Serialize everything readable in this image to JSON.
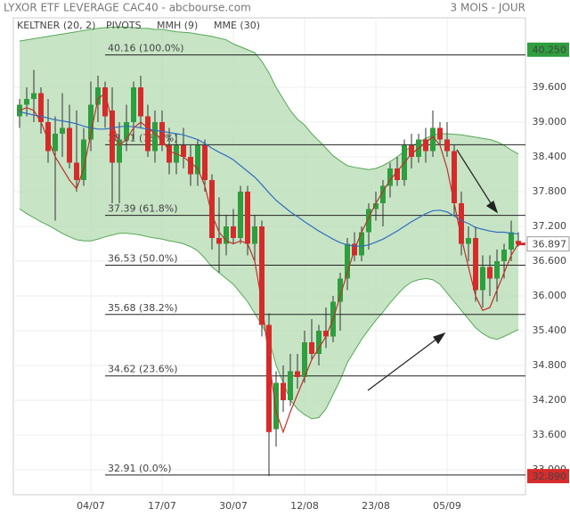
{
  "chart_data": {
    "type": "candlestick",
    "title": "LYXOR ETF LEVERAGE CAC40 - abcbourse.com",
    "period": "3 MOIS - JOUR",
    "categories": [
      null,
      null,
      null,
      null,
      null,
      null,
      null,
      null,
      null,
      null,
      "04/07",
      null,
      null,
      null,
      null,
      null,
      null,
      null,
      null,
      null,
      "17/07",
      null,
      null,
      null,
      null,
      null,
      null,
      null,
      null,
      null,
      "30/07",
      null,
      null,
      null,
      null,
      null,
      null,
      null,
      null,
      null,
      "12/08",
      null,
      null,
      null,
      null,
      null,
      null,
      null,
      null,
      null,
      "23/08",
      null,
      null,
      null,
      null,
      null,
      null,
      null,
      null,
      null,
      "05/09",
      null,
      null,
      null,
      null,
      null,
      null,
      null,
      null,
      null,
      null
    ],
    "open": [
      39.1,
      39.3,
      39.4,
      39.5,
      39.0,
      38.5,
      38.8,
      38.9,
      38.3,
      38.0,
      38.7,
      39.3,
      39.6,
      39.2,
      38.3,
      38.7,
      39.0,
      39.6,
      39.1,
      38.5,
      39.0,
      38.6,
      38.3,
      38.6,
      38.4,
      38.1,
      38.6,
      38.0,
      37.0,
      36.9,
      37.2,
      37.0,
      37.8,
      36.9,
      37.2,
      35.5,
      33.7,
      34.5,
      34.2,
      34.7,
      34.6,
      35.2,
      35.0,
      35.4,
      35.3,
      35.9,
      36.3,
      36.9,
      36.7,
      37.1,
      37.5,
      37.6,
      37.9,
      38.2,
      38.0,
      38.6,
      38.4,
      38.7,
      38.5,
      38.9,
      38.7,
      38.5,
      37.6,
      36.9,
      37.0,
      36.1,
      36.5,
      36.3,
      36.6,
      36.8,
      36.95
    ],
    "high": [
      39.4,
      39.6,
      39.9,
      39.6,
      39.4,
      39.1,
      39.5,
      39.3,
      39.2,
      38.9,
      39.7,
      39.8,
      39.7,
      39.6,
      39.0,
      39.3,
      39.7,
      39.8,
      39.3,
      39.2,
      39.2,
      38.9,
      38.8,
      38.9,
      38.6,
      38.7,
      38.7,
      38.1,
      37.7,
      37.4,
      37.5,
      37.9,
      37.9,
      37.4,
      37.3,
      35.7,
      34.7,
      34.8,
      35.0,
      35.0,
      35.4,
      35.6,
      35.5,
      35.8,
      36.0,
      36.4,
      37.0,
      37.1,
      37.2,
      37.6,
      37.8,
      38.0,
      38.3,
      38.4,
      38.7,
      38.8,
      38.8,
      38.9,
      39.2,
      39.0,
      39.0,
      38.6,
      37.8,
      37.2,
      37.2,
      36.7,
      36.7,
      36.8,
      36.9,
      37.3,
      37.1
    ],
    "low": [
      38.9,
      39.1,
      39.0,
      38.8,
      38.3,
      37.3,
      38.4,
      38.2,
      37.8,
      37.9,
      38.5,
      39.0,
      38.9,
      37.6,
      37.6,
      38.5,
      38.7,
      38.9,
      38.4,
      38.3,
      38.5,
      38.1,
      38.1,
      38.2,
      37.9,
      37.9,
      37.8,
      36.8,
      36.4,
      36.7,
      36.9,
      36.9,
      36.7,
      36.6,
      35.3,
      32.89,
      33.4,
      34.0,
      34.1,
      34.4,
      34.5,
      34.9,
      34.8,
      35.1,
      35.2,
      35.4,
      36.1,
      36.6,
      36.6,
      36.8,
      37.3,
      37.2,
      37.7,
      37.9,
      37.9,
      38.2,
      38.3,
      38.3,
      38.4,
      38.6,
      38.4,
      37.4,
      36.7,
      36.6,
      35.9,
      35.8,
      36.0,
      35.9,
      36.3,
      36.6,
      36.85
    ],
    "close": [
      39.3,
      39.4,
      39.5,
      39.0,
      38.5,
      38.8,
      38.9,
      38.3,
      38.0,
      38.7,
      39.3,
      39.6,
      39.1,
      38.3,
      38.7,
      39.0,
      39.6,
      39.1,
      38.5,
      39.0,
      38.6,
      38.3,
      38.6,
      38.4,
      38.1,
      38.6,
      38.0,
      37.0,
      36.9,
      37.2,
      37.0,
      37.8,
      36.9,
      37.2,
      35.5,
      33.65,
      34.5,
      34.2,
      34.7,
      34.6,
      35.2,
      35.0,
      35.4,
      35.3,
      35.9,
      36.3,
      36.9,
      36.7,
      37.1,
      37.5,
      37.6,
      37.9,
      38.2,
      38.0,
      38.6,
      38.4,
      38.7,
      38.5,
      38.9,
      38.7,
      38.5,
      37.6,
      36.9,
      37.0,
      36.1,
      36.5,
      36.3,
      36.6,
      36.8,
      37.1,
      36.897
    ],
    "up_color": "#2e9e3e",
    "down_color": "#d62b2b",
    "keltner": {
      "name": "KELTNER (20, 2)",
      "color": "#55a855",
      "fill": "#b9ddb6",
      "upper": [
        40.4,
        40.42,
        40.44,
        40.46,
        40.48,
        40.5,
        40.52,
        40.54,
        40.56,
        40.58,
        40.6,
        40.62,
        40.63,
        40.64,
        40.64,
        40.64,
        40.63,
        40.62,
        40.62,
        40.6,
        40.6,
        40.58,
        40.56,
        40.55,
        40.54,
        40.52,
        40.5,
        40.48,
        40.45,
        40.42,
        40.35,
        40.3,
        40.25,
        40.2,
        40.05,
        39.85,
        39.6,
        39.4,
        39.2,
        39.05,
        38.95,
        38.8,
        38.68,
        38.55,
        38.42,
        38.33,
        38.25,
        38.22,
        38.2,
        38.18,
        38.2,
        38.25,
        38.32,
        38.4,
        38.5,
        38.58,
        38.65,
        38.72,
        38.78,
        38.8,
        38.8,
        38.79,
        38.78,
        38.76,
        38.74,
        38.72,
        38.7,
        38.66,
        38.6,
        38.52,
        38.45
      ],
      "lower": [
        37.5,
        37.42,
        37.35,
        37.28,
        37.22,
        37.15,
        37.08,
        37.02,
        36.97,
        36.95,
        36.95,
        36.98,
        37.02,
        37.05,
        37.08,
        37.08,
        37.07,
        37.05,
        37.02,
        37.0,
        36.98,
        36.95,
        36.93,
        36.9,
        36.85,
        36.78,
        36.65,
        36.5,
        36.4,
        36.3,
        36.2,
        36.05,
        35.9,
        35.7,
        35.5,
        35.25,
        34.8,
        34.5,
        34.2,
        34.05,
        33.95,
        33.88,
        33.9,
        34.05,
        34.3,
        34.55,
        34.85,
        35.05,
        35.25,
        35.42,
        35.58,
        35.72,
        35.88,
        36.02,
        36.15,
        36.24,
        36.28,
        36.3,
        36.28,
        36.2,
        36.05,
        35.9,
        35.75,
        35.6,
        35.45,
        35.35,
        35.28,
        35.25,
        35.3,
        35.36,
        35.42
      ]
    },
    "pivots": {
      "name": "PIVOTS",
      "color": "#222222",
      "levels": [
        {
          "value": 40.16,
          "label": "40.16  (100.0%)"
        },
        {
          "value": 38.61,
          "label": "38.61  (78.6%)"
        },
        {
          "value": 37.39,
          "label": "37.39  (61.8%)"
        },
        {
          "value": 36.53,
          "label": "36.53  (50.0%)"
        },
        {
          "value": 35.68,
          "label": "35.68  (38.2%)"
        },
        {
          "value": 34.62,
          "label": "34.62  (23.6%)"
        },
        {
          "value": 32.91,
          "label": "32.91  (0.0%)"
        }
      ]
    },
    "mmh": {
      "name": "MMH (9)",
      "color": "#c0302a",
      "values": [
        39.2,
        39.25,
        39.2,
        39.0,
        38.7,
        38.4,
        38.2,
        38.0,
        37.85,
        38.2,
        38.8,
        39.4,
        39.5,
        39.0,
        38.6,
        38.7,
        38.9,
        39.0,
        38.9,
        38.8,
        38.7,
        38.5,
        38.45,
        38.4,
        38.3,
        38.2,
        37.9,
        37.4,
        37.1,
        36.95,
        36.9,
        36.95,
        36.9,
        36.6,
        35.9,
        34.9,
        34.0,
        33.65,
        34.0,
        34.3,
        34.6,
        34.9,
        35.1,
        35.3,
        35.6,
        36.0,
        36.4,
        36.8,
        37.1,
        37.35,
        37.6,
        37.8,
        38.0,
        38.15,
        38.3,
        38.45,
        38.55,
        38.65,
        38.75,
        38.6,
        38.2,
        37.6,
        37.0,
        36.5,
        36.0,
        35.75,
        35.8,
        36.1,
        36.4,
        36.7,
        36.9
      ]
    },
    "mme": {
      "name": "MME (30)",
      "color": "#2f6fc0",
      "values": [
        39.18,
        39.15,
        39.12,
        39.1,
        39.07,
        39.04,
        39.02,
        39.0,
        38.97,
        38.93,
        38.9,
        38.88,
        38.88,
        38.9,
        38.92,
        38.93,
        38.92,
        38.9,
        38.88,
        38.86,
        38.84,
        38.82,
        38.8,
        38.78,
        38.74,
        38.7,
        38.63,
        38.55,
        38.48,
        38.42,
        38.35,
        38.25,
        38.15,
        38.05,
        37.92,
        37.78,
        37.65,
        37.55,
        37.45,
        37.37,
        37.28,
        37.2,
        37.12,
        37.05,
        36.98,
        36.92,
        36.88,
        36.86,
        36.86,
        36.88,
        36.93,
        36.98,
        37.05,
        37.12,
        37.2,
        37.28,
        37.35,
        37.42,
        37.47,
        37.48,
        37.45,
        37.38,
        37.3,
        37.25,
        37.18,
        37.15,
        37.12,
        37.1,
        37.1,
        37.08,
        37.07
      ]
    },
    "high_badge": {
      "value": 40.25,
      "label": "40.250",
      "color": "#2e9e3e"
    },
    "low_badge": {
      "value": 32.89,
      "label": "32.890",
      "color": "#d62b2b"
    },
    "last_color": "#ffffff",
    "ylim": [
      32.569,
      40.8
    ],
    "yticks": [
      {
        "value": 39.6,
        "label": "39.600"
      },
      {
        "value": 39.0,
        "label": "39.000"
      },
      {
        "value": 38.4,
        "label": "38.400"
      },
      {
        "value": 37.8,
        "label": "37.800"
      },
      {
        "value": 37.2,
        "label": "37.200"
      },
      {
        "value": 36.6,
        "label": "36.600"
      },
      {
        "value": 36.0,
        "label": "36.000"
      },
      {
        "value": 35.4,
        "label": "35.400"
      },
      {
        "value": 34.8,
        "label": "34.800"
      },
      {
        "value": 34.2,
        "label": "34.200"
      },
      {
        "value": 33.6,
        "label": "33.600"
      },
      {
        "value": 33.0,
        "label": "33.000"
      }
    ],
    "grid": true
  }
}
